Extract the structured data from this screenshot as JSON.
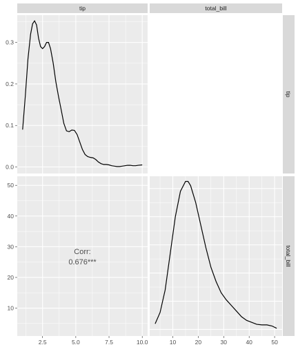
{
  "chart_data": {
    "type": "pairs-plot",
    "variables": [
      "tip",
      "total_bill"
    ],
    "column_strips": [
      "tip",
      "total_bill"
    ],
    "row_strips": [
      "tip",
      "total_bill"
    ],
    "panels": [
      {
        "position": "top-left",
        "type": "density",
        "variable": "tip",
        "xlim": [
          1.0,
          10.0
        ],
        "ylim": [
          0.0,
          0.35
        ],
        "y_ticks": [
          0.0,
          0.1,
          0.2,
          0.3
        ],
        "y_tick_labels": [
          "0.0",
          "0.1",
          "0.2",
          "0.3"
        ],
        "points": [
          [
            1.0,
            0.09
          ],
          [
            1.2,
            0.17
          ],
          [
            1.4,
            0.26
          ],
          [
            1.6,
            0.32
          ],
          [
            1.75,
            0.345
          ],
          [
            1.9,
            0.352
          ],
          [
            2.05,
            0.342
          ],
          [
            2.2,
            0.31
          ],
          [
            2.35,
            0.29
          ],
          [
            2.5,
            0.285
          ],
          [
            2.65,
            0.29
          ],
          [
            2.8,
            0.3
          ],
          [
            2.95,
            0.3
          ],
          [
            3.1,
            0.285
          ],
          [
            3.3,
            0.25
          ],
          [
            3.5,
            0.205
          ],
          [
            3.7,
            0.17
          ],
          [
            3.9,
            0.138
          ],
          [
            4.1,
            0.105
          ],
          [
            4.3,
            0.087
          ],
          [
            4.5,
            0.085
          ],
          [
            4.7,
            0.089
          ],
          [
            4.9,
            0.088
          ],
          [
            5.1,
            0.078
          ],
          [
            5.3,
            0.06
          ],
          [
            5.5,
            0.042
          ],
          [
            5.7,
            0.03
          ],
          [
            5.9,
            0.025
          ],
          [
            6.1,
            0.023
          ],
          [
            6.3,
            0.022
          ],
          [
            6.5,
            0.018
          ],
          [
            6.7,
            0.012
          ],
          [
            6.9,
            0.008
          ],
          [
            7.1,
            0.006
          ],
          [
            7.3,
            0.006
          ],
          [
            7.5,
            0.005
          ],
          [
            7.7,
            0.003
          ],
          [
            7.9,
            0.002
          ],
          [
            8.1,
            0.001
          ],
          [
            8.3,
            0.001
          ],
          [
            8.5,
            0.002
          ],
          [
            8.7,
            0.003
          ],
          [
            8.9,
            0.004
          ],
          [
            9.1,
            0.004
          ],
          [
            9.3,
            0.003
          ],
          [
            9.5,
            0.003
          ],
          [
            9.7,
            0.004
          ],
          [
            10.0,
            0.005
          ]
        ]
      },
      {
        "position": "top-right",
        "type": "blank"
      },
      {
        "position": "bottom-left",
        "type": "correlation",
        "x_variable": "tip",
        "y_variable": "total_bill",
        "label": "Corr:",
        "value_text": "0.676***",
        "value": 0.676,
        "xlim": [
          1.0,
          10.0
        ],
        "ylim": [
          3.07,
          50.81
        ],
        "x_ticks": [
          2.5,
          5.0,
          7.5,
          10.0
        ],
        "x_tick_labels": [
          "2.5",
          "5.0",
          "7.5",
          "10.0"
        ],
        "y_ticks": [
          10,
          20,
          30,
          40,
          50
        ],
        "y_tick_labels": [
          "10",
          "20",
          "30",
          "40",
          "50"
        ]
      },
      {
        "position": "bottom-right",
        "type": "density",
        "variable": "total_bill",
        "xlim": [
          3.07,
          50.81
        ],
        "x_ticks": [
          10,
          20,
          30,
          40,
          50
        ],
        "x_tick_labels": [
          "10",
          "20",
          "30",
          "40",
          "50"
        ],
        "density_max": 0.052,
        "points": [
          [
            3.07,
            0.002
          ],
          [
            5,
            0.006
          ],
          [
            7,
            0.014
          ],
          [
            9,
            0.027
          ],
          [
            11,
            0.04
          ],
          [
            13,
            0.049
          ],
          [
            15,
            0.0525
          ],
          [
            16,
            0.0525
          ],
          [
            17,
            0.051
          ],
          [
            19,
            0.045
          ],
          [
            21,
            0.037
          ],
          [
            23,
            0.029
          ],
          [
            25,
            0.022
          ],
          [
            27,
            0.017
          ],
          [
            29,
            0.013
          ],
          [
            31,
            0.0105
          ],
          [
            33,
            0.0085
          ],
          [
            35,
            0.0065
          ],
          [
            37,
            0.0045
          ],
          [
            39,
            0.0032
          ],
          [
            41,
            0.0025
          ],
          [
            43,
            0.0018
          ],
          [
            45,
            0.0016
          ],
          [
            47,
            0.0016
          ],
          [
            49,
            0.0012
          ],
          [
            50.81,
            0.0004
          ]
        ]
      }
    ]
  }
}
